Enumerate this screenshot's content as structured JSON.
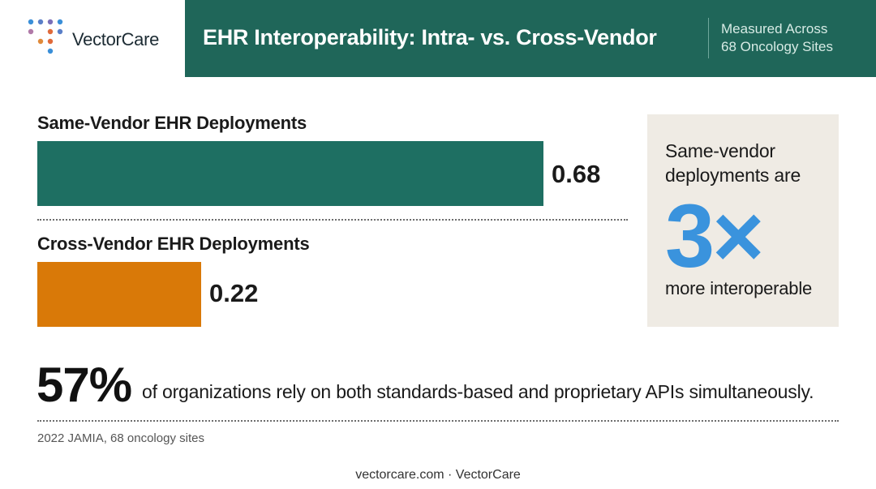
{
  "brand": {
    "name": "VectorCare",
    "dot_colors": [
      "#3a8fd8",
      "#5a7fc8",
      "#7a6fb8",
      "#3a8fd8",
      "#b07aa8",
      "#e06a3a",
      "#5a7fc8",
      "#e08a3a",
      "#e06a3a"
    ]
  },
  "header": {
    "title": "EHR Interoperability: Intra- vs. Cross-Vendor",
    "subtitle_line1": "Measured Across",
    "subtitle_line2": "68 Oncology Sites",
    "band_color": "#1f6659"
  },
  "chart_data": {
    "type": "bar",
    "orientation": "horizontal",
    "categories": [
      "Same-Vendor EHR Deployments",
      "Cross-Vendor EHR Deployments"
    ],
    "values": [
      0.68,
      0.22
    ],
    "value_labels": [
      "0.68",
      "0.22"
    ],
    "colors": [
      "#1e6f62",
      "#d97908"
    ],
    "xlim": [
      0,
      0.68
    ],
    "grid": false
  },
  "callout": {
    "line1": "Same-vendor",
    "line2": "deployments are",
    "big": "3×",
    "bottom": "more interoperable",
    "big_color": "#3a93dd"
  },
  "stat": {
    "value": "57%",
    "text": "of organizations rely on both standards-based and proprietary APIs simultaneously."
  },
  "source": "2022 JAMIA, 68 oncology sites",
  "footer": "vectorcare.com · VectorCare"
}
